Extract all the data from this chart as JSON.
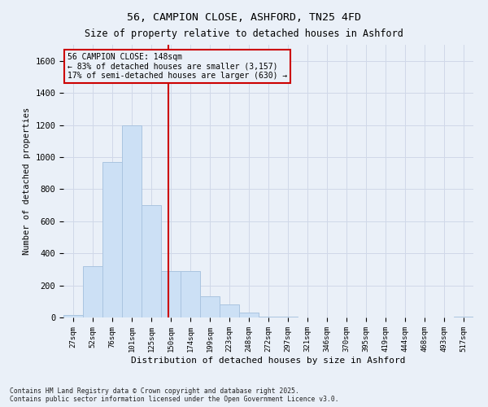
{
  "title_line1": "56, CAMPION CLOSE, ASHFORD, TN25 4FD",
  "title_line2": "Size of property relative to detached houses in Ashford",
  "xlabel": "Distribution of detached houses by size in Ashford",
  "ylabel": "Number of detached properties",
  "footnote": "Contains HM Land Registry data © Crown copyright and database right 2025.\nContains public sector information licensed under the Open Government Licence v3.0.",
  "annotation_line1": "56 CAMPION CLOSE: 148sqm",
  "annotation_line2": "← 83% of detached houses are smaller (3,157)",
  "annotation_line3": "17% of semi-detached houses are larger (630) →",
  "bar_edge_color": "#aac4e0",
  "bar_face_color": "#cce0f5",
  "vline_color": "#cc0000",
  "annotation_box_color": "#cc0000",
  "grid_color": "#d0d8e8",
  "background_color": "#eaf0f8",
  "categories": [
    "27sqm",
    "52sqm",
    "76sqm",
    "101sqm",
    "125sqm",
    "150sqm",
    "174sqm",
    "199sqm",
    "223sqm",
    "248sqm",
    "272sqm",
    "297sqm",
    "321sqm",
    "346sqm",
    "370sqm",
    "395sqm",
    "419sqm",
    "444sqm",
    "468sqm",
    "493sqm",
    "517sqm"
  ],
  "values": [
    15,
    320,
    970,
    1200,
    700,
    290,
    290,
    130,
    80,
    30,
    5,
    5,
    0,
    0,
    0,
    0,
    0,
    0,
    0,
    0,
    5
  ],
  "ylim": [
    0,
    1700
  ],
  "yticks": [
    0,
    200,
    400,
    600,
    800,
    1000,
    1200,
    1400,
    1600
  ],
  "vline_x_index": 4.88
}
